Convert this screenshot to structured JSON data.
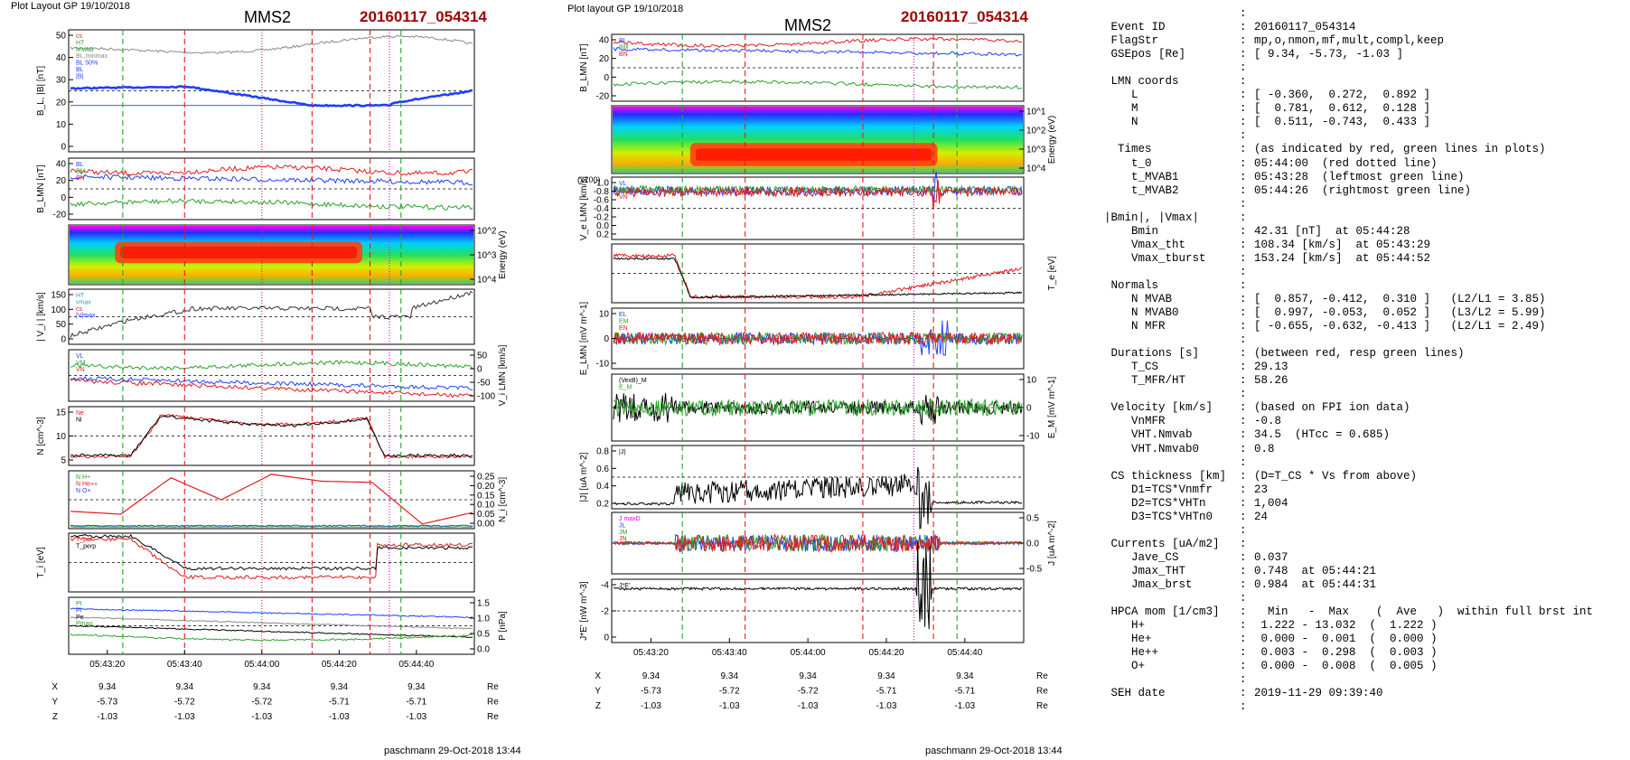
{
  "left_figure": {
    "header_left": "Plot Layout GP 19/10/2018",
    "title": "MMS2",
    "event": "20160117_054314",
    "footer": "paschmann 29-Oct-2018 13:44",
    "time_ticks": [
      "05:43:20",
      "05:43:40",
      "05:44:00",
      "05:44:20",
      "05:44:40"
    ],
    "coord_rows": [
      {
        "label": "X",
        "values": [
          "9.34",
          "9.34",
          "9.34",
          "9.34",
          "9.34"
        ],
        "unit": "Re"
      },
      {
        "label": "Y",
        "values": [
          "-5.73",
          "-5.72",
          "-5.72",
          "-5.71",
          "-5.71"
        ],
        "unit": "Re"
      },
      {
        "label": "Z",
        "values": [
          "-1.03",
          "-1.03",
          "-1.03",
          "-1.03",
          "-1.03"
        ],
        "unit": "Re"
      }
    ],
    "panels": [
      {
        "ylabel": "B_L, |B| [nT]",
        "yticks_left": [
          "0",
          "10",
          "20",
          "30",
          "40",
          "50"
        ],
        "yticks_right": [],
        "legend": [
          "cs",
          "HT",
          "MVAB",
          "BL,minmax",
          "BL 50%",
          "BL",
          "|B|"
        ]
      },
      {
        "ylabel": "B_LMN [nT]",
        "yticks_left": [
          "-20",
          "0",
          "20",
          "40"
        ],
        "yticks_right": [],
        "legend": [
          "BL",
          "BM",
          "BN"
        ]
      },
      {
        "ylabel": "",
        "yticks_left": [],
        "yticks_right": [
          "10^2",
          "10^3",
          "10^4"
        ],
        "right_label": "Energy (eV)",
        "legend": []
      },
      {
        "ylabel": "| V_i | [km/s]",
        "yticks_left": [
          "0",
          "50",
          "100",
          "150"
        ],
        "yticks_right": [],
        "legend": [
          "HT",
          "vmax",
          "cs",
          "|V|max"
        ]
      },
      {
        "ylabel": "",
        "yticks_left": [],
        "yticks_right": [
          "50",
          "0",
          "-50",
          "-100"
        ],
        "right_label": "V_i LMN [km/s]",
        "legend": [
          "VL",
          "VM",
          "VN"
        ]
      },
      {
        "ylabel": "N [cm^-3]",
        "yticks_left": [
          "5",
          "10",
          "15"
        ],
        "yticks_right": [],
        "legend": [
          "Ne",
          "Ni"
        ]
      },
      {
        "ylabel": "",
        "yticks_left": [],
        "yticks_right": [
          "0.25",
          "0.20",
          "0.15",
          "0.10",
          "0.05",
          "0.00"
        ],
        "right_label": "N_i [cm^-3]",
        "legend": [
          "N H+",
          "N He++",
          "N O+"
        ]
      },
      {
        "ylabel": "T_i [eV]",
        "yticks_left": [],
        "yticks_right": [],
        "legend": [
          "T_par",
          "T_perp"
        ]
      },
      {
        "ylabel": "",
        "yticks_left": [],
        "yticks_right": [
          "1.5",
          "1.0",
          "0.5",
          "0.0"
        ],
        "right_label": "P [nPa]",
        "legend": [
          "Pt",
          "Pi",
          "Pe",
          "Pmag"
        ]
      }
    ]
  },
  "right_figure": {
    "header_left": "Plot layout GP 19/10/2018",
    "title": "MMS2",
    "event": "20160117_054314",
    "footer": "paschmann 29-Oct-2018 13:44",
    "time_ticks": [
      "05:43:20",
      "05:43:40",
      "05:44:00",
      "05:44:20",
      "05:44:40"
    ],
    "coord_rows": [
      {
        "label": "X",
        "values": [
          "9.34",
          "9.34",
          "9.34",
          "9.34",
          "9.34"
        ],
        "unit": "Re"
      },
      {
        "label": "Y",
        "values": [
          "-5.73",
          "-5.72",
          "-5.72",
          "-5.71",
          "-5.71"
        ],
        "unit": "Re"
      },
      {
        "label": "Z",
        "values": [
          "-1.03",
          "-1.03",
          "-1.03",
          "-1.03",
          "-1.03"
        ],
        "unit": "Re"
      }
    ],
    "panels": [
      {
        "ylabel": "B_LMN [nT]",
        "yticks_left": [
          "-20",
          "0",
          "20",
          "40"
        ],
        "yticks_right": [],
        "legend": [
          "BL",
          "BM",
          "BN"
        ]
      },
      {
        "ylabel": "",
        "yticks_left": [],
        "yticks_right": [
          "10^1",
          "10^2",
          "10^3",
          "10^4"
        ],
        "right_label": "Energy (eV)",
        "legend": []
      },
      {
        "ylabel": "V_e LMN [km/s]",
        "yticks_left": [
          "0.2",
          "0.0",
          "-0.2",
          "-0.4",
          "-0.6",
          "-0.8",
          "-1.0"
        ],
        "yticks_right": [],
        "legend": [
          "VL",
          "VM",
          "VN"
        ],
        "scale_note": "(x100)"
      },
      {
        "ylabel": "",
        "yticks_left": [],
        "yticks_right": [],
        "right_label": "T_e [eV]",
        "legend": []
      },
      {
        "ylabel": "E_LMN [mV m^-1]",
        "yticks_left": [
          "-10",
          "0",
          "10"
        ],
        "yticks_right": [],
        "legend": [
          "EL",
          "EM",
          "EN"
        ]
      },
      {
        "ylabel": "",
        "yticks_left": [],
        "yticks_right": [
          "10",
          "0",
          "-10"
        ],
        "right_label": "E_M [mV m^-1]",
        "legend": [
          "(VexB)_M",
          "E_M"
        ]
      },
      {
        "ylabel": "|J| [uA m^-2]",
        "yticks_left": [
          "0.2",
          "0.4",
          "0.6",
          "0.8"
        ],
        "yticks_right": [],
        "legend": [
          "|J|"
        ]
      },
      {
        "ylabel": "",
        "yticks_left": [],
        "yticks_right": [
          "0.5",
          "0.0",
          "-0.5"
        ],
        "right_label": "J [uA m^-2]",
        "legend": [
          "J maxD",
          "JL",
          "JM",
          "JN"
        ]
      },
      {
        "ylabel": "J*E' [nW m^-3]",
        "yticks_left": [
          "0",
          "-2",
          "-4"
        ],
        "yticks_right": [],
        "legend": [
          "J*E'"
        ]
      }
    ]
  },
  "info_table": [
    {
      "key": "",
      "val": ""
    },
    {
      "key": " Event ID",
      "val": "20160117_054314"
    },
    {
      "key": " FlagStr",
      "val": "mp,o,nmon,mf,mult,compl,keep"
    },
    {
      "key": " GSEpos [Re]",
      "val": "[ 9.34, -5.73, -1.03 ]"
    },
    {
      "key": "",
      "val": ""
    },
    {
      "key": " LMN coords",
      "val": ""
    },
    {
      "key": "    L",
      "val": "[ -0.360,  0.272,  0.892 ]"
    },
    {
      "key": "    M",
      "val": "[  0.781,  0.612,  0.128 ]"
    },
    {
      "key": "    N",
      "val": "[  0.511, -0.743,  0.433 ]"
    },
    {
      "key": "",
      "val": ""
    },
    {
      "key": "  Times",
      "val": "(as indicated by red, green lines in plots)"
    },
    {
      "key": "    t_0",
      "val": "05:44:00  (red dotted line)"
    },
    {
      "key": "    t_MVAB1",
      "val": "05:43:28  (leftmost green line)"
    },
    {
      "key": "    t_MVAB2",
      "val": "05:44:26  (rightmost green line)"
    },
    {
      "key": "",
      "val": ""
    },
    {
      "key": "|Bmin|, |Vmax|",
      "val": ""
    },
    {
      "key": "    Bmin",
      "val": "42.31 [nT]  at 05:44:28"
    },
    {
      "key": "    Vmax_tht",
      "val": "108.34 [km/s]  at 05:43:29"
    },
    {
      "key": "    Vmax_tburst",
      "val": "153.24 [km/s]  at 05:44:52"
    },
    {
      "key": "",
      "val": ""
    },
    {
      "key": " Normals",
      "val": ""
    },
    {
      "key": "    N MVAB",
      "val": "[  0.857, -0.412,  0.310 ]   (L2/L1 = 3.85)"
    },
    {
      "key": "    N MVAB0",
      "val": "[  0.997, -0.053,  0.052 ]   (L3/L2 = 5.99)"
    },
    {
      "key": "    N MFR",
      "val": "[ -0.655, -0.632, -0.413 ]   (L2/L1 = 2.49)"
    },
    {
      "key": "",
      "val": ""
    },
    {
      "key": " Durations [s]",
      "val": "(between red, resp green lines)"
    },
    {
      "key": "    T_CS",
      "val": "29.13"
    },
    {
      "key": "    T_MFR/HT",
      "val": "58.26"
    },
    {
      "key": "",
      "val": ""
    },
    {
      "key": " Velocity [km/s]",
      "val": "(based on FPI ion data)"
    },
    {
      "key": "    VnMFR",
      "val": "-0.8"
    },
    {
      "key": "    VHT.Nmvab",
      "val": "34.5  (HTcc = 0.685)"
    },
    {
      "key": "    VHT.Nmvab0",
      "val": "0.8"
    },
    {
      "key": "",
      "val": ""
    },
    {
      "key": " CS thickness [km]",
      "val": "(D=T_CS * Vs from above)"
    },
    {
      "key": "    D1=TCS*Vnmfr",
      "val": "23"
    },
    {
      "key": "    D2=TCS*VHTn",
      "val": "1,004"
    },
    {
      "key": "    D3=TCS*VHTn0",
      "val": "24"
    },
    {
      "key": "",
      "val": ""
    },
    {
      "key": " Currents [uA/m2]",
      "val": ""
    },
    {
      "key": "    Jave_CS",
      "val": "0.037"
    },
    {
      "key": "    Jmax_THT",
      "val": "0.748  at 05:44:21"
    },
    {
      "key": "    Jmax_brst",
      "val": "0.984  at 05:44:31"
    },
    {
      "key": "",
      "val": ""
    },
    {
      "key": " HPCA mom [1/cm3]",
      "val": "  Min   -  Max    (  Ave   )  within full brst int"
    },
    {
      "key": "    H+",
      "val": " 1.222 - 13.032  (  1.222 )"
    },
    {
      "key": "    He+",
      "val": " 0.000 -  0.001  (  0.000 )"
    },
    {
      "key": "    He++",
      "val": " 0.003 -  0.298  (  0.003 )"
    },
    {
      "key": "    O+",
      "val": " 0.000 -  0.008  (  0.005 )"
    },
    {
      "key": "",
      "val": ""
    },
    {
      "key": " SEH date",
      "val": "2019-11-29 09:39:40"
    },
    {
      "key": "",
      "val": ""
    }
  ],
  "colors": {
    "red": "#e41a1c",
    "green": "#2ca02c",
    "blue": "#1f3fff",
    "magenta": "#e000e0",
    "title_red": "#a00000"
  },
  "chart_data": [
    {
      "type": "line",
      "title": "MMS2",
      "xlabel": "",
      "x_range": [
        "05:43:10",
        "05:44:55"
      ],
      "x_ticks": [
        "05:43:20",
        "05:43:40",
        "05:44:00",
        "05:44:20",
        "05:44:40"
      ],
      "markers": {
        "red_dashed": [
          "05:43:40",
          "05:44:13",
          "05:44:28"
        ],
        "red_dotted": [
          "05:44:00"
        ],
        "green_dashed": [
          "05:43:24",
          "05:44:36"
        ],
        "magenta_dotted": [
          "05:44:33"
        ],
        "gray_dashed": [
          "05:43:25",
          "05:44:19"
        ]
      },
      "series": [
        {
          "name": "|B|",
          "panel": 1,
          "x": [
            "05:43:10",
            "05:43:20",
            "05:43:30",
            "05:43:40",
            "05:43:50",
            "05:44:00",
            "05:44:10",
            "05:44:20",
            "05:44:30",
            "05:44:40",
            "05:44:55"
          ],
          "values": [
            37,
            39,
            39,
            39,
            34,
            30,
            26,
            20,
            21,
            25,
            27
          ]
        },
        {
          "name": "BL",
          "panel": 1,
          "x": [
            "05:43:10",
            "05:43:20",
            "05:43:30",
            "05:43:40",
            "05:43:50",
            "05:44:00",
            "05:44:10",
            "05:44:20",
            "05:44:30",
            "05:44:40",
            "05:44:55"
          ],
          "values": [
            51,
            52,
            52,
            53,
            51,
            50,
            47,
            43,
            42,
            45,
            46
          ]
        },
        {
          "name": "|V|",
          "panel": 4,
          "x": [
            "05:43:10",
            "05:43:20",
            "05:43:30",
            "05:43:40",
            "05:43:50",
            "05:44:00",
            "05:44:10",
            "05:44:20",
            "05:44:30",
            "05:44:40",
            "05:44:55"
          ],
          "values": [
            10,
            35,
            50,
            80,
            95,
            95,
            90,
            95,
            85,
            110,
            150
          ]
        },
        {
          "name": "Ne",
          "panel": 6,
          "x": [
            "05:43:10",
            "05:43:20",
            "05:43:30",
            "05:43:40",
            "05:43:50",
            "05:44:00",
            "05:44:10",
            "05:44:20",
            "05:44:30",
            "05:44:40",
            "05:44:55"
          ],
          "values": [
            2,
            2,
            10,
            12,
            13,
            12,
            14,
            15,
            15,
            4,
            3
          ]
        },
        {
          "name": "N He++",
          "panel": 7,
          "x": [
            "05:43:26",
            "05:43:40",
            "05:43:51",
            "05:44:00",
            "05:44:12",
            "05:44:22",
            "05:44:30",
            "05:44:46"
          ],
          "values": [
            0.08,
            0.26,
            0.18,
            0.27,
            0.24,
            0.24,
            0.02,
            0.07
          ]
        }
      ]
    },
    {
      "type": "line",
      "title": "MMS2",
      "xlabel": "",
      "x_range": [
        "05:43:10",
        "05:44:55"
      ],
      "x_ticks": [
        "05:43:20",
        "05:43:40",
        "05:44:00",
        "05:44:20",
        "05:44:40"
      ],
      "markers": {
        "red_dashed": [
          "05:43:44",
          "05:44:14",
          "05:44:32"
        ],
        "green_dashed": [
          "05:43:28",
          "05:44:38"
        ],
        "magenta_dotted": [
          "05:44:27"
        ]
      },
      "series": [
        {
          "name": "BL",
          "panel": 1,
          "x": [
            "05:43:10",
            "05:43:30",
            "05:43:50",
            "05:44:10",
            "05:44:30",
            "05:44:55"
          ],
          "values": [
            38,
            36,
            34,
            32,
            34,
            33
          ]
        },
        {
          "name": "Te",
          "panel": 4,
          "x": [
            "05:43:10",
            "05:43:20",
            "05:43:30",
            "05:43:40",
            "05:44:00",
            "05:44:20",
            "05:44:40",
            "05:44:55"
          ],
          "values": [
            90,
            92,
            40,
            20,
            20,
            30,
            35,
            35
          ]
        },
        {
          "name": "|J|",
          "panel": 7,
          "x": [
            "05:43:10",
            "05:43:30",
            "05:43:40",
            "05:44:00",
            "05:44:20",
            "05:44:30",
            "05:44:40",
            "05:44:55"
          ],
          "values": [
            0.03,
            0.05,
            0.15,
            0.2,
            0.35,
            0.9,
            0.1,
            0.05
          ]
        }
      ]
    }
  ]
}
